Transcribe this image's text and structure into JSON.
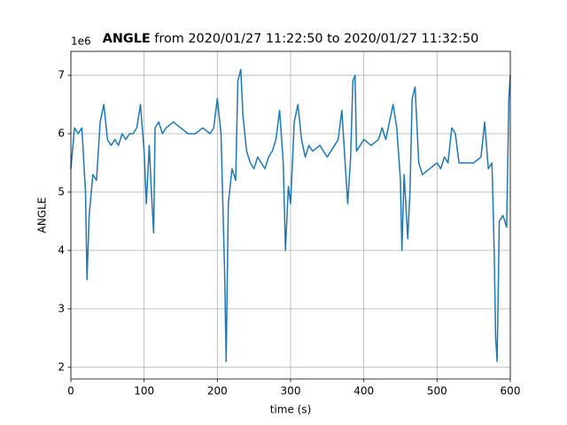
{
  "chart_data": {
    "type": "line",
    "title_bold": "ANGLE",
    "title": "from 2020/01/27 11:22:50 to 2020/01/27 11:32:50",
    "offset_label": "1e6",
    "x_label": "time (s)",
    "y_label": "ANGLE",
    "xlim": [
      0,
      600
    ],
    "xticks": [
      0,
      100,
      200,
      300,
      400,
      500,
      600
    ],
    "ylim": [
      1.8,
      7.41
    ],
    "yticks": [
      2,
      3,
      4,
      5,
      6,
      7
    ],
    "grid": true,
    "series": [
      {
        "name": "ANGLE",
        "color": "#1f77b4",
        "x": [
          0,
          5,
          10,
          15,
          20,
          22,
          25,
          30,
          35,
          40,
          45,
          50,
          55,
          60,
          65,
          70,
          75,
          80,
          85,
          90,
          95,
          100,
          103,
          107,
          110,
          113,
          115,
          120,
          125,
          130,
          140,
          150,
          160,
          170,
          180,
          190,
          195,
          200,
          205,
          210,
          212,
          215,
          220,
          225,
          228,
          232,
          235,
          240,
          245,
          250,
          255,
          260,
          265,
          270,
          275,
          280,
          285,
          290,
          293,
          297,
          300,
          305,
          310,
          315,
          320,
          325,
          330,
          340,
          350,
          360,
          365,
          370,
          375,
          378,
          382,
          385,
          388,
          390,
          395,
          400,
          410,
          420,
          425,
          430,
          435,
          440,
          445,
          450,
          452,
          455,
          460,
          463,
          466,
          470,
          475,
          480,
          490,
          500,
          505,
          510,
          515,
          520,
          525,
          530,
          540,
          550,
          560,
          565,
          570,
          575,
          578,
          580,
          582,
          585,
          590,
          595,
          598,
          600
        ],
        "values": [
          5.4,
          6.1,
          6.0,
          6.1,
          5.0,
          3.5,
          4.6,
          5.3,
          5.2,
          6.2,
          6.5,
          5.9,
          5.8,
          5.9,
          5.8,
          6.0,
          5.9,
          6.0,
          6.0,
          6.1,
          6.5,
          5.7,
          4.8,
          5.8,
          5.0,
          4.3,
          6.1,
          6.2,
          6.0,
          6.1,
          6.2,
          6.1,
          6.0,
          6.0,
          6.1,
          6.0,
          6.1,
          6.6,
          6.0,
          3.6,
          2.1,
          4.8,
          5.4,
          5.2,
          6.9,
          7.1,
          6.3,
          5.7,
          5.5,
          5.4,
          5.6,
          5.5,
          5.4,
          5.6,
          5.7,
          5.9,
          6.4,
          5.5,
          4.0,
          5.1,
          4.8,
          6.2,
          6.5,
          5.9,
          5.6,
          5.8,
          5.7,
          5.8,
          5.6,
          5.8,
          5.9,
          6.4,
          5.4,
          4.8,
          5.6,
          6.9,
          7.0,
          5.7,
          5.8,
          5.9,
          5.8,
          5.9,
          6.1,
          5.9,
          6.2,
          6.5,
          6.1,
          5.2,
          4.0,
          5.3,
          4.2,
          5.0,
          6.6,
          6.8,
          5.5,
          5.3,
          5.4,
          5.5,
          5.4,
          5.6,
          5.5,
          6.1,
          6.0,
          5.5,
          5.5,
          5.5,
          5.6,
          6.2,
          5.4,
          5.5,
          4.0,
          2.5,
          2.1,
          4.5,
          4.6,
          4.4,
          6.6,
          7.0
        ]
      }
    ]
  }
}
